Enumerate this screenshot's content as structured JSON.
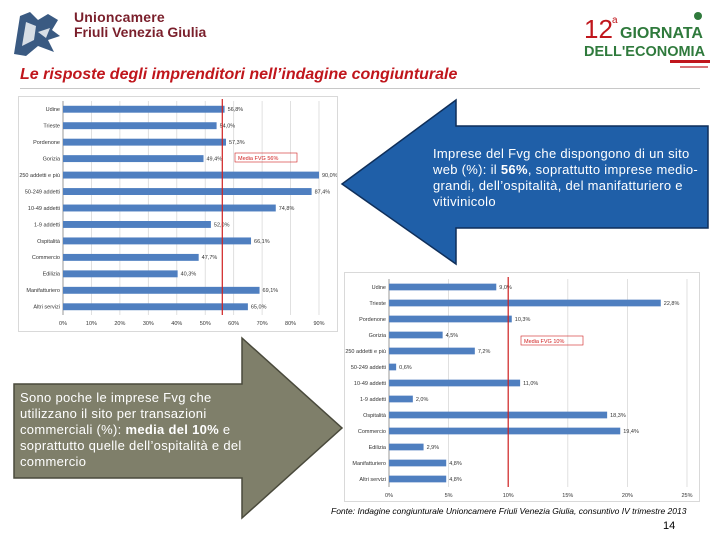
{
  "header": {
    "org_line1": "Unioncamere",
    "org_line2": "Friuli Venezia Giulia",
    "event_number": "12",
    "event_sup": "a",
    "event_line1": "GIORNATA",
    "event_line2": "DELL'ECONOMIA",
    "brand_colors": {
      "org": "#7a1f2b",
      "event_green": "#2f7a3c",
      "event_red": "#c0161c"
    }
  },
  "slide": {
    "title": "Le risposte degli imprenditori nell’indagine congiunturale",
    "footer_source": "Fonte: Indagine congiunturale Unioncamere Friuli Venezia Giulia, consuntivo IV trimestre 2013",
    "page_number": "14"
  },
  "callouts": {
    "web": {
      "pre": "Imprese del Fvg che dispongono di un sito web (%): il ",
      "highlight": "56%",
      "post": ", soprattutto imprese medio-grandi, dell’ospitalità, del manifatturiero e vitivinicolo",
      "color": "#1f5fa8"
    },
    "ecommerce": {
      "pre": "Sono poche le imprese Fvg che utilizzano il sito per transazioni commerciali (%): ",
      "highlight": "media del 10%",
      "post": " e soprattutto quelle dell’ospitalità e del commercio",
      "color": "#7f7f6a"
    }
  },
  "chart_data": [
    {
      "type": "bar",
      "orientation": "horizontal",
      "categories": [
        "Udine",
        "Trieste",
        "Pordenone",
        "Gorizia",
        "250 addetti e più",
        "50-249 addetti",
        "10-49 addetti",
        "1-9 addetti",
        "Ospitalità",
        "Commercio",
        "Edilizia",
        "Manifatturiero",
        "Altri servizi"
      ],
      "values": [
        56.8,
        54.0,
        57.3,
        49.4,
        90.0,
        87.4,
        74.8,
        52.0,
        66.1,
        47.7,
        40.3,
        69.1,
        65.0
      ],
      "value_labels": [
        "56,8%",
        "54,0%",
        "57,3%",
        "49,4%",
        "90,0%",
        "87,4%",
        "74,8%",
        "52,0%",
        "66,1%",
        "47,7%",
        "40,3%",
        "69,1%",
        "65,0%"
      ],
      "xlim": [
        0,
        90
      ],
      "xticks": [
        "0%",
        "10%",
        "20%",
        "30%",
        "40%",
        "50%",
        "60%",
        "70%",
        "80%",
        "90%"
      ],
      "average": 56,
      "average_label": "Media FVG 56%",
      "bar_color": "#4f7fc0",
      "avg_color": "#d02020",
      "grid": true
    },
    {
      "type": "bar",
      "orientation": "horizontal",
      "categories": [
        "Udine",
        "Trieste",
        "Pordenone",
        "Gorizia",
        "250 addetti e più",
        "50-249 addetti",
        "10-49 addetti",
        "1-9 addetti",
        "Ospitalità",
        "Commercio",
        "Edilizia",
        "Manifatturiero",
        "Altri servizi"
      ],
      "values": [
        9.0,
        22.8,
        10.3,
        4.5,
        7.2,
        0.6,
        11.0,
        2.0,
        18.3,
        19.4,
        2.9,
        4.8,
        4.8
      ],
      "value_labels": [
        "9,0%",
        "22,8%",
        "10,3%",
        "4,5%",
        "7,2%",
        "0,6%",
        "11,0%",
        "2,0%",
        "18,3%",
        "19,4%",
        "2,9%",
        "4,8%",
        "4,8%"
      ],
      "xlim": [
        0,
        25
      ],
      "xticks": [
        "0%",
        "5%",
        "10%",
        "15%",
        "20%",
        "25%"
      ],
      "average": 10,
      "average_label": "Media FVG 10%",
      "bar_color": "#4f7fc0",
      "avg_color": "#d02020",
      "grid": true
    }
  ]
}
